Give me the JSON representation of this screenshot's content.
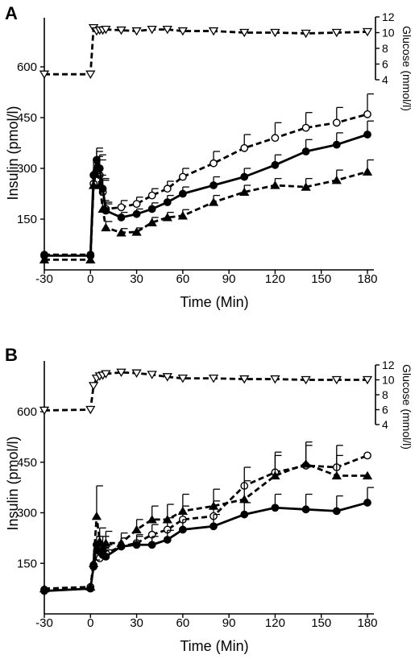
{
  "figure": {
    "panels": [
      {
        "letter": "A",
        "xlabel": "Time (Min)",
        "ylabel": "Insulin (pmol/l)",
        "y2label": "Glucose (mmol/l)"
      },
      {
        "letter": "B",
        "xlabel": "Time (Min)",
        "ylabel": "Insulin (pmol/l)",
        "y2label": "Glucose (mmol/l)"
      }
    ]
  },
  "chart_data": [
    {
      "type": "line",
      "panel": "A",
      "xlabel": "Time (Min)",
      "ylabel": "Insulin (pmol/l)",
      "y2label": "Glucose (mmol/l)",
      "xlim": [
        -30,
        180
      ],
      "ylim": [
        0,
        750
      ],
      "y2lim": [
        2,
        12
      ],
      "x_ticks": [
        "-30",
        "0",
        "30",
        "60",
        "90",
        "120",
        "150",
        "180"
      ],
      "y_ticks": [
        "150",
        "300",
        "450",
        "600"
      ],
      "y2_ticks": [
        "4",
        "6",
        "8",
        "10",
        "12"
      ],
      "grid": false,
      "series": [
        {
          "marker": "open-triangle-down",
          "line": "dashed",
          "axis": "right",
          "fill": "#ffffff",
          "x": [
            -30,
            0,
            2,
            4,
            6,
            8,
            10,
            20,
            30,
            40,
            50,
            60,
            80,
            100,
            120,
            140,
            160,
            180
          ],
          "y": [
            4.7,
            4.7,
            10.6,
            10.2,
            10.3,
            10.3,
            10.4,
            10.3,
            10.2,
            10.4,
            10.4,
            10.2,
            10.2,
            10.0,
            10.0,
            9.9,
            10.0,
            10.1
          ]
        },
        {
          "marker": "open-circle",
          "line": "dashed",
          "axis": "left",
          "fill": "#ffffff",
          "x": [
            -30,
            0,
            2,
            4,
            6,
            8,
            10,
            20,
            30,
            40,
            50,
            60,
            80,
            100,
            120,
            140,
            160,
            180
          ],
          "y": [
            45,
            45,
            255,
            295,
            280,
            230,
            180,
            185,
            195,
            220,
            240,
            275,
            315,
            360,
            390,
            420,
            435,
            460
          ],
          "err": [
            0,
            0,
            45,
            55,
            45,
            35,
            20,
            20,
            20,
            20,
            22,
            25,
            35,
            40,
            45,
            45,
            45,
            60
          ]
        },
        {
          "marker": "filled-circle",
          "line": "solid",
          "axis": "left",
          "fill": "#000000",
          "x": [
            -30,
            0,
            2,
            4,
            6,
            8,
            10,
            20,
            30,
            40,
            50,
            60,
            80,
            100,
            120,
            140,
            160,
            180
          ],
          "y": [
            42,
            42,
            280,
            325,
            300,
            240,
            175,
            155,
            165,
            180,
            200,
            225,
            250,
            275,
            310,
            350,
            370,
            400
          ],
          "err": [
            0,
            0,
            40,
            35,
            40,
            30,
            20,
            15,
            15,
            18,
            20,
            20,
            25,
            25,
            30,
            35,
            35,
            40
          ]
        },
        {
          "marker": "filled-triangle-up",
          "line": "dashed",
          "axis": "left",
          "fill": "#000000",
          "x": [
            -30,
            0,
            2,
            4,
            6,
            8,
            10,
            20,
            30,
            40,
            50,
            60,
            80,
            100,
            120,
            140,
            160,
            180
          ],
          "y": [
            30,
            30,
            250,
            300,
            250,
            180,
            125,
            110,
            112,
            140,
            155,
            160,
            200,
            230,
            250,
            245,
            265,
            290
          ],
          "err": [
            0,
            0,
            35,
            35,
            30,
            25,
            18,
            12,
            12,
            15,
            15,
            18,
            20,
            20,
            20,
            25,
            30,
            35
          ]
        }
      ]
    },
    {
      "type": "line",
      "panel": "B",
      "xlabel": "Time (Min)",
      "ylabel": "Insulin (pmol/l)",
      "y2label": "Glucose (mmol/l)",
      "xlim": [
        -30,
        180
      ],
      "ylim": [
        0,
        750
      ],
      "y2lim": [
        2,
        12
      ],
      "x_ticks": [
        "-30",
        "0",
        "30",
        "60",
        "90",
        "120",
        "150",
        "180"
      ],
      "y_ticks": [
        "150",
        "300",
        "450",
        "600"
      ],
      "y2_ticks": [
        "4",
        "6",
        "8",
        "10",
        "12"
      ],
      "grid": false,
      "series": [
        {
          "marker": "open-triangle-down",
          "line": "dashed",
          "axis": "right",
          "fill": "#ffffff",
          "x": [
            -30,
            0,
            2,
            4,
            6,
            8,
            10,
            20,
            30,
            40,
            50,
            60,
            80,
            100,
            120,
            140,
            160,
            180
          ],
          "y": [
            5.9,
            6.0,
            9.2,
            10.2,
            10.5,
            10.6,
            10.8,
            11.0,
            10.9,
            10.7,
            10.4,
            10.2,
            10.2,
            10.1,
            10.1,
            10.0,
            10.0,
            10.0
          ]
        },
        {
          "marker": "open-circle",
          "line": "dashed",
          "axis": "left",
          "fill": "#ffffff",
          "x": [
            -30,
            0,
            2,
            4,
            6,
            8,
            10,
            20,
            30,
            40,
            50,
            60,
            80,
            100,
            120,
            140,
            160,
            180
          ],
          "y": [
            72,
            80,
            145,
            175,
            165,
            175,
            180,
            200,
            210,
            235,
            250,
            280,
            290,
            380,
            420,
            440,
            435,
            470
          ],
          "err": [
            0,
            0,
            20,
            25,
            20,
            22,
            25,
            25,
            25,
            30,
            35,
            40,
            45,
            55,
            60,
            60,
            65,
            0
          ]
        },
        {
          "marker": "filled-circle",
          "line": "solid",
          "axis": "left",
          "fill": "#000000",
          "x": [
            -30,
            0,
            2,
            4,
            6,
            8,
            10,
            20,
            30,
            40,
            50,
            60,
            80,
            100,
            120,
            140,
            160,
            180
          ],
          "y": [
            68,
            75,
            140,
            205,
            185,
            175,
            170,
            200,
            205,
            205,
            220,
            250,
            260,
            295,
            315,
            310,
            305,
            330
          ],
          "err": [
            0,
            0,
            20,
            25,
            22,
            20,
            20,
            25,
            25,
            25,
            28,
            30,
            35,
            35,
            40,
            45,
            45,
            45
          ]
        },
        {
          "marker": "filled-triangle-up",
          "line": "dashed",
          "axis": "left",
          "fill": "#000000",
          "x": [
            -30,
            0,
            2,
            4,
            6,
            8,
            10,
            20,
            30,
            40,
            50,
            60,
            80,
            100,
            120,
            140,
            160,
            180
          ],
          "y": [
            75,
            80,
            150,
            290,
            215,
            195,
            210,
            210,
            250,
            280,
            280,
            305,
            320,
            340,
            410,
            445,
            410,
            410
          ],
          "err": [
            0,
            0,
            40,
            90,
            40,
            35,
            35,
            30,
            30,
            40,
            45,
            50,
            50,
            55,
            60,
            65,
            60,
            0
          ]
        }
      ]
    }
  ]
}
